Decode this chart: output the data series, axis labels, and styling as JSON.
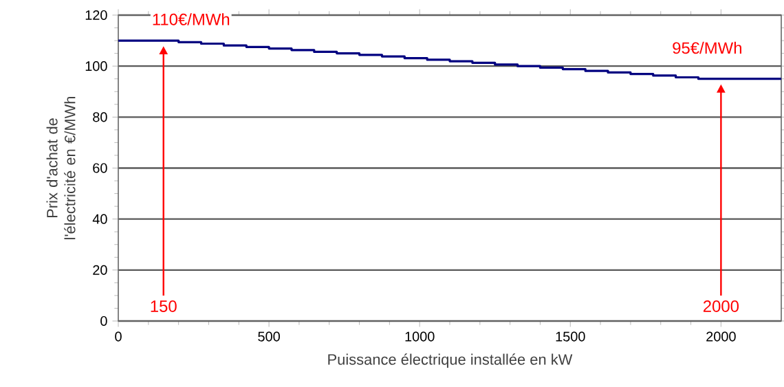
{
  "chart_data": {
    "type": "step",
    "xlabel": "Puissance électrique installée en kW",
    "ylabel": "Prix d'achat de l'électricité en €/MWh",
    "x": [
      0,
      200,
      275,
      350,
      425,
      500,
      575,
      650,
      725,
      800,
      875,
      950,
      1025,
      1100,
      1175,
      1250,
      1325,
      1400,
      1475,
      1550,
      1625,
      1700,
      1775,
      1850,
      1925,
      2200
    ],
    "series": [
      {
        "color": "#000080",
        "values": [
          110,
          109.4,
          108.8,
          108.1,
          107.5,
          106.9,
          106.3,
          105.6,
          105,
          104.4,
          103.8,
          103.1,
          102.5,
          101.9,
          101.3,
          100.6,
          100,
          99.4,
          98.8,
          98.1,
          97.5,
          96.9,
          96.3,
          95.6,
          95,
          95
        ]
      }
    ],
    "xlim": [
      0,
      2200
    ],
    "xticks": [
      0,
      500,
      1000,
      1500,
      2000
    ],
    "ylim": [
      0,
      120
    ],
    "yticks": [
      0,
      20,
      40,
      60,
      80,
      100,
      120
    ],
    "grid": "y",
    "annotations": [
      {
        "text": "110€/MWh",
        "x": 150,
        "y": 110
      },
      {
        "text": "95€/MWh",
        "x": 2000,
        "y": 95
      },
      "150",
      "2000"
    ]
  }
}
